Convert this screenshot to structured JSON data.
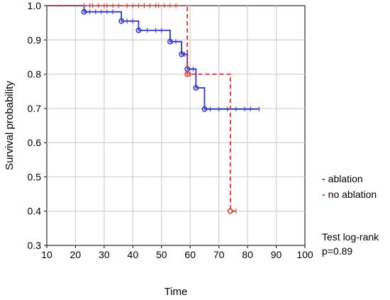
{
  "chart_data": {
    "type": "line",
    "xlabel": "Time",
    "ylabel": "Survival probability",
    "xlim": [
      10,
      100
    ],
    "ylim": [
      0.3,
      1.0
    ],
    "x_ticks": [
      "10",
      "20",
      "30",
      "40",
      "50",
      "60",
      "70",
      "80",
      "90",
      "100"
    ],
    "y_ticks": [
      "0.3",
      "0.4",
      "0.5",
      "0.6",
      "0.7",
      "0.8",
      "0.9",
      "1.0"
    ],
    "grid": true,
    "legend_position": "right",
    "series": [
      {
        "name": "ablation",
        "color": "#2a33d6",
        "style": "solid",
        "steps": [
          [
            10,
            1.0
          ],
          [
            23,
            0.982
          ],
          [
            36,
            0.955
          ],
          [
            42,
            0.928
          ],
          [
            53,
            0.895
          ],
          [
            57,
            0.858
          ],
          [
            59,
            0.815
          ],
          [
            62,
            0.76
          ],
          [
            65,
            0.698
          ],
          [
            84,
            0.698
          ]
        ],
        "events": [
          [
            23,
            0.982
          ],
          [
            36,
            0.955
          ],
          [
            42,
            0.928
          ],
          [
            53,
            0.895
          ],
          [
            57,
            0.858
          ],
          [
            59,
            0.815
          ],
          [
            62,
            0.76
          ],
          [
            65,
            0.698
          ]
        ],
        "censored": [
          25,
          27,
          29,
          31,
          33,
          38,
          40,
          45,
          48,
          50,
          55,
          58,
          61,
          67,
          70,
          73,
          76,
          79,
          81,
          84
        ]
      },
      {
        "name": "no ablation",
        "color": "#e8302a",
        "style": "dashed",
        "steps": [
          [
            10,
            1.0
          ],
          [
            59,
            1.0
          ],
          [
            59,
            0.8
          ],
          [
            74,
            0.8
          ],
          [
            74,
            0.4
          ],
          [
            76,
            0.4
          ]
        ],
        "events": [
          [
            59,
            0.8
          ],
          [
            74,
            0.4
          ]
        ],
        "censored": [
          23,
          25,
          26,
          28,
          30,
          31,
          33,
          35,
          38,
          40,
          42,
          44,
          46,
          48,
          49,
          51,
          53,
          55,
          60,
          76
        ]
      }
    ],
    "annotation": {
      "line1": "Test log-rank",
      "line2": "p=0.89"
    }
  }
}
